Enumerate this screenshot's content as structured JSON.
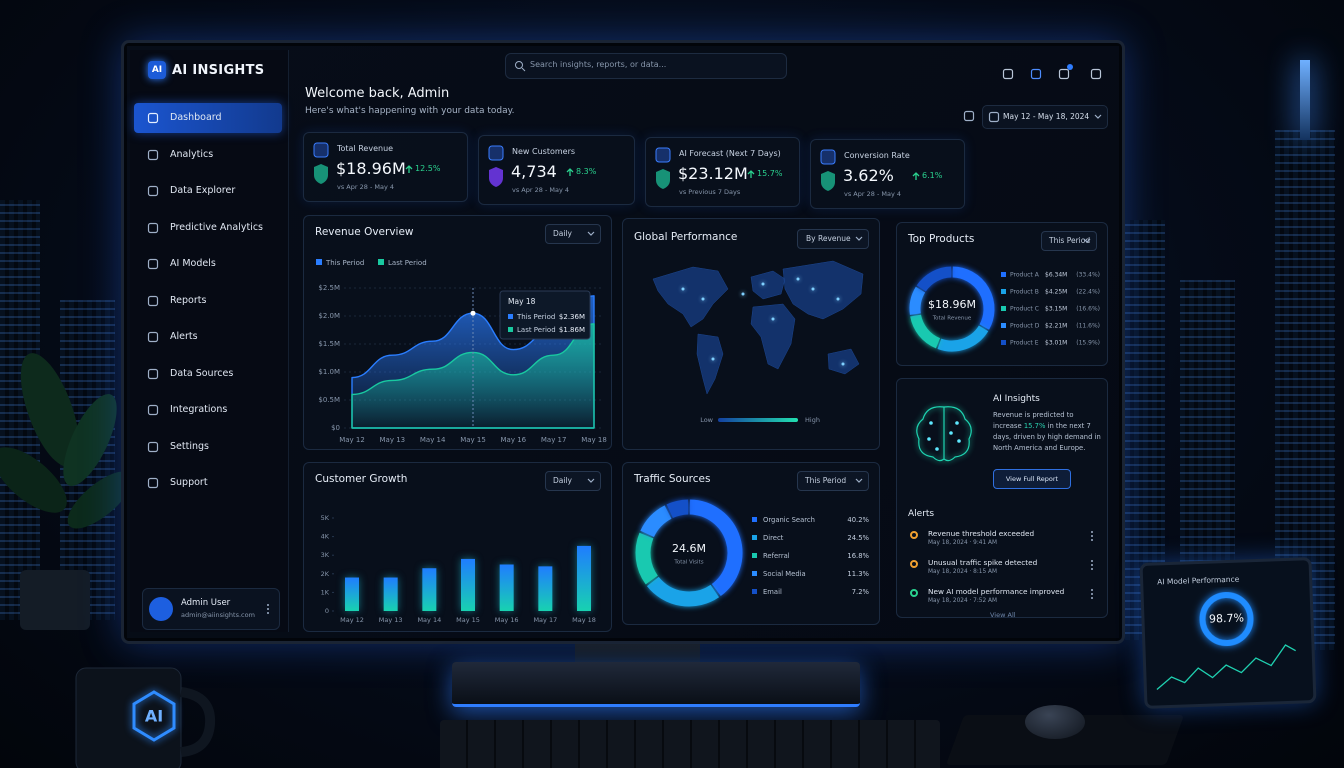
{
  "sidebar": {
    "logo_icon": "AI",
    "logo_text": "AI INSIGHTS",
    "nav": [
      "Dashboard",
      "Analytics",
      "Data Explorer",
      "Predictive Analytics",
      "AI Models",
      "Reports",
      "Alerts",
      "Data Sources",
      "Integrations",
      "Settings",
      "Support"
    ],
    "user": {
      "name": "Admin User",
      "email": "admin@aiinsights.com"
    }
  },
  "header": {
    "search_placeholder": "Search insights, reports, or data...",
    "welcome": "Welcome back, Admin",
    "subtitle": "Here's what's happening with your data today.",
    "date_range": "May 12 - May 18, 2024"
  },
  "kpis": [
    {
      "label": "Total Revenue",
      "value": "$18.96M",
      "change": "12.5%",
      "period": "vs Apr 28 - May 4"
    },
    {
      "label": "New Customers",
      "value": "4,734",
      "change": "8.3%",
      "period": "vs Apr 28 - May 4"
    },
    {
      "label": "AI Forecast (Next 7 Days)",
      "value": "$23.12M",
      "change": "15.7%",
      "period": "vs Previous 7 Days"
    },
    {
      "label": "Conversion Rate",
      "value": "3.62%",
      "change": "6.1%",
      "period": "vs Apr 28 - May 4"
    }
  ],
  "revenue_overview": {
    "type": "area",
    "title": "Revenue Overview",
    "control": "Daily",
    "categories": [
      "May 12",
      "May 13",
      "May 14",
      "May 15",
      "May 16",
      "May 17",
      "May 18"
    ],
    "series": [
      {
        "name": "This Period",
        "color": "#2a7dff",
        "values": [
          0.9,
          1.3,
          1.55,
          2.05,
          1.4,
          1.75,
          2.36
        ]
      },
      {
        "name": "Last Period",
        "color": "#19c9a0",
        "values": [
          0.6,
          0.85,
          1.05,
          1.35,
          0.95,
          1.3,
          1.86
        ]
      }
    ],
    "ylim": [
      0,
      2.5
    ],
    "yticks": [
      {
        "value": 0,
        "label": "$0"
      },
      {
        "value": 0.5,
        "label": "$0.5M"
      },
      {
        "value": 1,
        "label": "$1.0M"
      },
      {
        "value": 1.5,
        "label": "$1.5M"
      },
      {
        "value": 2,
        "label": "$2.0M"
      },
      {
        "value": 2.5,
        "label": "$2.5M"
      }
    ],
    "grid": true,
    "tooltip": {
      "date": "May 18",
      "rows": [
        {
          "name": "This Period",
          "value": "$2.36M"
        },
        {
          "name": "Last Period",
          "value": "$1.86M"
        }
      ]
    }
  },
  "global_performance": {
    "title": "Global Performance",
    "control": "By Revenue",
    "legend_low": "Low",
    "legend_high": "High"
  },
  "top_products": {
    "type": "donut",
    "title": "Top Products",
    "control": "This Period",
    "center_value": "$18.96M",
    "center_label": "Total Revenue",
    "categories": [
      "Product A",
      "Product B",
      "Product C",
      "Product D",
      "Product E"
    ],
    "amounts": [
      "$6.34M",
      "$4.25M",
      "$3.15M",
      "$2.21M",
      "$3.01M"
    ],
    "values": [
      33.4,
      22.4,
      16.6,
      11.6,
      15.9
    ],
    "value_labels": [
      "(33.4%)",
      "(22.4%)",
      "(16.6%)",
      "(11.6%)",
      "(15.9%)"
    ],
    "colors": [
      "#1f6fff",
      "#1aa3e8",
      "#19c9b0",
      "#2b8cff",
      "#1450c8"
    ]
  },
  "customer_growth": {
    "type": "bar",
    "title": "Customer Growth",
    "control": "Daily",
    "categories": [
      "May 12",
      "May 13",
      "May 14",
      "May 15",
      "May 16",
      "May 17",
      "May 18"
    ],
    "values": [
      1.8,
      1.8,
      2.3,
      2.8,
      2.5,
      2.4,
      3.5
    ],
    "color": "#18d2b0",
    "ylim": [
      0,
      5
    ],
    "yticks": [
      0,
      {
        "value": 1,
        "label": "1K"
      },
      {
        "value": 2,
        "label": "2K"
      },
      {
        "value": 3,
        "label": "3K"
      },
      {
        "value": 4,
        "label": "4K"
      },
      {
        "value": 5,
        "label": "5K"
      }
    ]
  },
  "traffic_sources": {
    "type": "donut",
    "title": "Traffic Sources",
    "control": "This Period",
    "center_value": "24.6M",
    "center_label": "Total Visits",
    "categories": [
      "Organic Search",
      "Direct",
      "Referral",
      "Social Media",
      "Email"
    ],
    "values": [
      40.2,
      24.5,
      16.8,
      11.3,
      7.2
    ],
    "value_labels": [
      "40.2%",
      "24.5%",
      "16.8%",
      "11.3%",
      "7.2%"
    ],
    "colors": [
      "#1f6fff",
      "#1aa3e8",
      "#19c9b0",
      "#2b8cff",
      "#1450c8"
    ]
  },
  "ai_insights": {
    "title": "AI Insights",
    "text_before": "Revenue is predicted to increase ",
    "highlight": "15.7%",
    "text_after": " in the next 7 days, driven by high demand in North America and Europe.",
    "button": "View Full Report"
  },
  "alerts": {
    "title": "Alerts",
    "items": [
      {
        "title": "Revenue threshold exceeded",
        "time": "May 18, 2024 · 9:41 AM"
      },
      {
        "title": "Unusual traffic spike detected",
        "time": "May 18, 2024 · 8:15 AM"
      },
      {
        "title": "New AI model performance improved",
        "time": "May 18, 2024 · 7:52 AM"
      }
    ],
    "footer": "View All"
  },
  "tablet": {
    "title": "AI Model Performance",
    "value": "98.7%"
  },
  "mug": "AI"
}
